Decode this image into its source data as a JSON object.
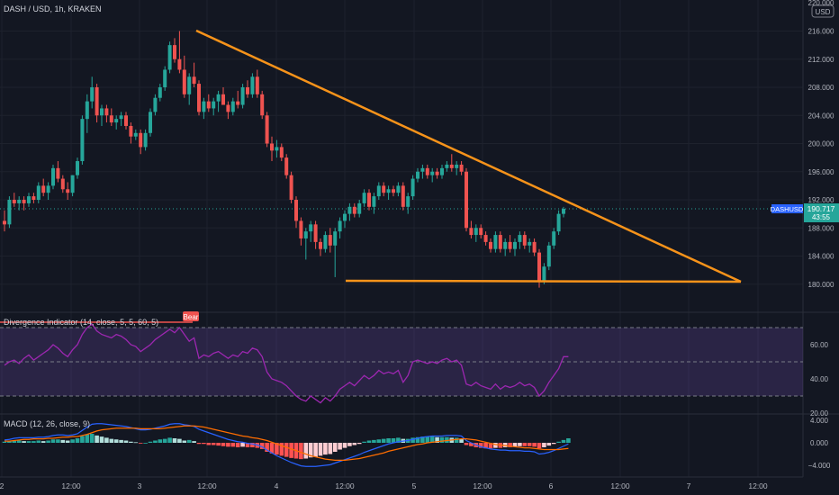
{
  "header": {
    "symbol_title": "DASH / USD, 1h, KRAKEN",
    "currency_badge": "USD"
  },
  "price_axis": {
    "top_partial": "220.000",
    "ticks": [
      "216.000",
      "212.000",
      "208.000",
      "204.000",
      "200.000",
      "196.000",
      "192.000",
      "188.000",
      "184.000",
      "180.000"
    ],
    "current_price": "190.717",
    "countdown": "43:55"
  },
  "rsi_panel": {
    "label": "Divergence Indicator (14, close, 5, 5, 60, 5)",
    "bear_label": "Bear",
    "ticks": [
      "60.00",
      "40.00",
      "20.00"
    ]
  },
  "macd_panel": {
    "label": "MACD (12, 26, close, 9)",
    "ticks": [
      "4.000",
      "0.000",
      "−4.000"
    ]
  },
  "time_axis": {
    "labels": [
      "2",
      "12:00",
      "3",
      "12:00",
      "4",
      "12:00",
      "5",
      "12:00",
      "6",
      "12:00",
      "7",
      "12:00"
    ]
  },
  "colors": {
    "background": "#131722",
    "up": "#26a69a",
    "down": "#ef5350",
    "trendline": "#f7931a",
    "rsi_line": "#9c27b0",
    "rsi_band": "#7e57c2",
    "macd_line": "#2962ff",
    "signal_line": "#ff6d00",
    "price_tag": "#2962ff"
  },
  "chart_data": [
    {
      "type": "candlestick",
      "title": "DASH / USD, 1h, KRAKEN",
      "ylim": [
        178,
        220
      ],
      "current_price": 190.717,
      "candles": [
        [
          189.0,
          190.5,
          187.5,
          188.5
        ],
        [
          188.5,
          192.5,
          188,
          192.0
        ],
        [
          192.0,
          193.0,
          191.0,
          191.5
        ],
        [
          191.5,
          192.5,
          190.5,
          192.0
        ],
        [
          192.0,
          192.5,
          190.5,
          191.5
        ],
        [
          191.5,
          193.0,
          191.0,
          192.5
        ],
        [
          192.5,
          193.0,
          191.5,
          192.0
        ],
        [
          192.0,
          194.5,
          191.5,
          194.0
        ],
        [
          194.0,
          195.0,
          192.5,
          193.0
        ],
        [
          193.0,
          194.5,
          192.0,
          194.0
        ],
        [
          194.0,
          197.0,
          193.5,
          196.5
        ],
        [
          196.5,
          197.5,
          194.5,
          195.0
        ],
        [
          195.0,
          195.5,
          193.0,
          193.5
        ],
        [
          193.5,
          194.5,
          192.0,
          193.0
        ],
        [
          193.0,
          195.5,
          192.5,
          195.5
        ],
        [
          195.5,
          198.0,
          195.0,
          197.5
        ],
        [
          197.5,
          204.0,
          197.0,
          203.5
        ],
        [
          203.5,
          207.0,
          201.5,
          206.0
        ],
        [
          206.0,
          209.5,
          205.0,
          208.0
        ],
        [
          208.0,
          208.5,
          203.0,
          204.0
        ],
        [
          204.0,
          205.5,
          202.5,
          205.0
        ],
        [
          205.0,
          205.5,
          203.0,
          204.0
        ],
        [
          204.0,
          205.0,
          202.5,
          203.0
        ],
        [
          203.0,
          204.0,
          202.0,
          203.5
        ],
        [
          203.5,
          204.5,
          202.5,
          204.0
        ],
        [
          204.0,
          204.5,
          202.0,
          202.5
        ],
        [
          202.5,
          203.0,
          200.0,
          201.0
        ],
        [
          201.0,
          202.0,
          200.5,
          201.5
        ],
        [
          201.5,
          202.0,
          198.5,
          199.5
        ],
        [
          199.5,
          202.0,
          199.0,
          201.5
        ],
        [
          201.5,
          205.0,
          201.0,
          204.5
        ],
        [
          204.5,
          207.0,
          204.0,
          206.5
        ],
        [
          206.5,
          208.5,
          206.0,
          208.0
        ],
        [
          208.0,
          211.0,
          207.5,
          210.5
        ],
        [
          210.5,
          214.5,
          210.0,
          214.0
        ],
        [
          214.0,
          215.0,
          211.5,
          212.0
        ],
        [
          212.0,
          216.0,
          210.0,
          210.5
        ],
        [
          210.5,
          212.5,
          206.5,
          207.0
        ],
        [
          207.0,
          210.0,
          205.5,
          209.5
        ],
        [
          209.5,
          211.5,
          208.0,
          208.5
        ],
        [
          208.5,
          209.0,
          204.0,
          204.5
        ],
        [
          204.5,
          206.5,
          203.5,
          206.0
        ],
        [
          206.0,
          207.0,
          204.5,
          205.0
        ],
        [
          205.0,
          206.5,
          204.0,
          206.0
        ],
        [
          206.0,
          207.5,
          204.5,
          207.0
        ],
        [
          207.0,
          208.0,
          205.5,
          205.5
        ],
        [
          205.5,
          206.0,
          203.5,
          204.5
        ],
        [
          204.5,
          206.5,
          204.0,
          206.0
        ],
        [
          206.0,
          207.5,
          205.0,
          205.5
        ],
        [
          205.5,
          208.5,
          205.0,
          208.0
        ],
        [
          208.0,
          209.0,
          206.5,
          207.0
        ],
        [
          207.0,
          210.0,
          206.5,
          209.5
        ],
        [
          209.5,
          210.5,
          206.5,
          207.0
        ],
        [
          207.0,
          207.5,
          203.5,
          204.0
        ],
        [
          204.0,
          204.5,
          199.5,
          200.0
        ],
        [
          200.0,
          201.0,
          197.5,
          199.0
        ],
        [
          199.0,
          200.5,
          198.0,
          199.5
        ],
        [
          199.5,
          200.0,
          197.5,
          198.0
        ],
        [
          198.0,
          198.5,
          195.0,
          195.5
        ],
        [
          195.5,
          196.0,
          191.5,
          192.0
        ],
        [
          192.0,
          192.5,
          188.0,
          189.0
        ],
        [
          189.0,
          189.5,
          185.5,
          186.5
        ],
        [
          186.5,
          188.0,
          183.5,
          187.5
        ],
        [
          187.5,
          189.0,
          186.0,
          188.5
        ],
        [
          188.5,
          189.0,
          185.0,
          186.0
        ],
        [
          186.0,
          186.5,
          184.0,
          185.0
        ],
        [
          185.0,
          187.5,
          184.5,
          187.0
        ],
        [
          187.0,
          188.0,
          184.5,
          185.5
        ],
        [
          185.5,
          188.0,
          181.0,
          187.5
        ],
        [
          187.5,
          189.5,
          186.5,
          189.0
        ],
        [
          189.0,
          190.5,
          188.0,
          190.0
        ],
        [
          190.0,
          191.5,
          189.0,
          191.0
        ],
        [
          191.0,
          191.5,
          189.5,
          190.0
        ],
        [
          190.0,
          192.0,
          189.5,
          191.5
        ],
        [
          191.5,
          193.5,
          191.0,
          193.0
        ],
        [
          193.0,
          193.5,
          190.5,
          191.0
        ],
        [
          191.0,
          193.0,
          190.0,
          192.5
        ],
        [
          192.5,
          194.5,
          192.0,
          194.0
        ],
        [
          194.0,
          194.5,
          192.5,
          193.0
        ],
        [
          193.0,
          194.0,
          192.0,
          193.5
        ],
        [
          193.5,
          194.0,
          192.5,
          193.0
        ],
        [
          193.0,
          194.5,
          192.5,
          194.0
        ],
        [
          194.0,
          194.5,
          190.5,
          191.0
        ],
        [
          191.0,
          193.0,
          190.0,
          192.5
        ],
        [
          192.5,
          195.5,
          192.0,
          195.0
        ],
        [
          195.0,
          196.5,
          194.5,
          196.0
        ],
        [
          196.0,
          197.0,
          195.0,
          196.5
        ],
        [
          196.5,
          197.0,
          195.0,
          195.5
        ],
        [
          195.5,
          196.5,
          194.5,
          196.0
        ],
        [
          196.0,
          196.5,
          195.0,
          195.5
        ],
        [
          195.5,
          197.0,
          195.0,
          196.5
        ],
        [
          196.5,
          197.5,
          196.0,
          197.0
        ],
        [
          197.0,
          198.5,
          196.0,
          196.5
        ],
        [
          196.5,
          197.5,
          195.5,
          197.0
        ],
        [
          197.0,
          197.5,
          195.5,
          196.0
        ],
        [
          196.0,
          196.5,
          187.5,
          188.0
        ],
        [
          188.0,
          189.0,
          186.5,
          187.0
        ],
        [
          187.0,
          188.5,
          186.0,
          188.0
        ],
        [
          188.0,
          188.5,
          186.5,
          187.0
        ],
        [
          187.0,
          187.5,
          185.5,
          186.0
        ],
        [
          186.0,
          186.5,
          184.5,
          185.0
        ],
        [
          185.0,
          187.5,
          184.5,
          187.0
        ],
        [
          187.0,
          187.5,
          184.5,
          185.0
        ],
        [
          185.0,
          186.5,
          184.0,
          186.0
        ],
        [
          186.0,
          187.0,
          184.5,
          185.0
        ],
        [
          185.0,
          186.5,
          184.0,
          186.0
        ],
        [
          186.0,
          187.5,
          185.0,
          187.0
        ],
        [
          187.0,
          187.5,
          185.0,
          185.5
        ],
        [
          185.5,
          186.5,
          184.5,
          186.0
        ],
        [
          186.0,
          186.5,
          184.0,
          184.5
        ],
        [
          184.5,
          185.0,
          179.5,
          180.5
        ],
        [
          180.5,
          183.0,
          180.0,
          182.5
        ],
        [
          182.5,
          186.0,
          182.0,
          185.5
        ],
        [
          185.5,
          188.0,
          185.0,
          187.5
        ],
        [
          187.5,
          190.5,
          187.0,
          190.0
        ],
        [
          190.0,
          191.0,
          189.5,
          190.717
        ]
      ]
    },
    {
      "type": "line",
      "title": "Divergence Indicator (14, close, 5, 5, 60, 5)",
      "ylim": [
        20,
        70
      ],
      "bands": [
        30,
        50,
        70
      ],
      "values": [
        48,
        50,
        51,
        49,
        52,
        54,
        51,
        53,
        55,
        57,
        60,
        58,
        55,
        53,
        57,
        60,
        66,
        70,
        72,
        68,
        66,
        65,
        64,
        66,
        65,
        63,
        60,
        59,
        56,
        58,
        60,
        63,
        65,
        67,
        69,
        67,
        70,
        66,
        62,
        64,
        52,
        54,
        53,
        55,
        56,
        54,
        52,
        54,
        53,
        56,
        55,
        58,
        57,
        53,
        44,
        40,
        39,
        38,
        36,
        33,
        30,
        28,
        27,
        30,
        28,
        26,
        29,
        27,
        30,
        34,
        36,
        38,
        36,
        39,
        42,
        40,
        42,
        45,
        43,
        44,
        43,
        45,
        38,
        42,
        50,
        51,
        50,
        49,
        50,
        49,
        51,
        52,
        50,
        51,
        48,
        37,
        36,
        38,
        36,
        35,
        34,
        37,
        34,
        36,
        35,
        36,
        38,
        36,
        37,
        35,
        30,
        33,
        38,
        42,
        46,
        53,
        53
      ]
    },
    {
      "type": "bar+line",
      "title": "MACD (12, 26, close, 9)",
      "ylim": [
        -5,
        5
      ],
      "histogram": [
        0.2,
        0.3,
        0.4,
        0.4,
        0.3,
        0.3,
        0.3,
        0.4,
        0.3,
        0.4,
        0.6,
        0.6,
        0.5,
        0.4,
        0.6,
        0.8,
        1.2,
        1.5,
        1.6,
        1.3,
        1.1,
        0.9,
        0.7,
        0.6,
        0.5,
        0.4,
        0.2,
        0.1,
        -0.1,
        0.0,
        0.2,
        0.4,
        0.6,
        0.7,
        0.9,
        0.8,
        0.7,
        0.4,
        0.5,
        0.3,
        -0.2,
        -0.2,
        -0.4,
        -0.4,
        -0.5,
        -0.6,
        -0.7,
        -0.7,
        -0.8,
        -0.7,
        -0.8,
        -0.8,
        -0.9,
        -1.1,
        -1.6,
        -1.9,
        -2.1,
        -2.3,
        -2.5,
        -2.7,
        -2.8,
        -2.9,
        -2.8,
        -2.6,
        -2.5,
        -2.3,
        -2.1,
        -2.0,
        -1.6,
        -1.2,
        -0.9,
        -0.6,
        -0.4,
        -0.2,
        0.2,
        0.4,
        0.5,
        0.6,
        0.7,
        0.8,
        0.8,
        0.9,
        0.7,
        0.7,
        0.9,
        1.0,
        1.1,
        1.1,
        1.1,
        1.0,
        1.0,
        1.0,
        0.9,
        0.9,
        0.7,
        -0.4,
        -0.6,
        -0.8,
        -0.9,
        -1.0,
        -1.0,
        -0.9,
        -0.9,
        -0.8,
        -0.8,
        -0.7,
        -0.6,
        -0.6,
        -0.6,
        -0.7,
        -1.0,
        -0.8,
        -0.5,
        -0.2,
        0.2,
        0.5,
        0.8
      ],
      "macd": [
        0.5,
        0.6,
        0.8,
        0.9,
        0.9,
        0.9,
        0.9,
        1.0,
        1.0,
        1.1,
        1.3,
        1.4,
        1.4,
        1.3,
        1.4,
        1.6,
        2.2,
        2.8,
        3.3,
        3.4,
        3.4,
        3.3,
        3.2,
        3.1,
        3.0,
        2.9,
        2.7,
        2.5,
        2.3,
        2.3,
        2.4,
        2.6,
        2.8,
        3.0,
        3.3,
        3.4,
        3.4,
        3.2,
        3.1,
        2.9,
        2.4,
        2.1,
        1.8,
        1.5,
        1.2,
        0.9,
        0.6,
        0.4,
        0.2,
        0.1,
        -0.1,
        -0.2,
        -0.4,
        -0.7,
        -1.3,
        -1.8,
        -2.3,
        -2.7,
        -3.1,
        -3.5,
        -3.8,
        -4.1,
        -4.2,
        -4.2,
        -4.2,
        -4.1,
        -4.0,
        -3.9,
        -3.6,
        -3.3,
        -3.0,
        -2.7,
        -2.4,
        -2.1,
        -1.7,
        -1.4,
        -1.1,
        -0.8,
        -0.5,
        -0.2,
        0.0,
        0.2,
        0.3,
        0.4,
        0.6,
        0.8,
        1.0,
        1.1,
        1.2,
        1.2,
        1.2,
        1.3,
        1.3,
        1.3,
        1.2,
        0.4,
        0.0,
        -0.4,
        -0.7,
        -0.9,
        -1.1,
        -1.2,
        -1.3,
        -1.3,
        -1.4,
        -1.4,
        -1.4,
        -1.5,
        -1.5,
        -1.6,
        -2.0,
        -1.9,
        -1.7,
        -1.4,
        -1.0,
        -0.6,
        -0.2
      ],
      "signal": [
        0.3,
        0.3,
        0.4,
        0.5,
        0.6,
        0.6,
        0.7,
        0.7,
        0.7,
        0.8,
        0.8,
        0.9,
        1.0,
        1.0,
        1.1,
        1.1,
        1.3,
        1.5,
        1.8,
        2.1,
        2.3,
        2.4,
        2.5,
        2.6,
        2.6,
        2.6,
        2.6,
        2.6,
        2.5,
        2.5,
        2.5,
        2.5,
        2.5,
        2.6,
        2.7,
        2.8,
        2.9,
        3.0,
        3.0,
        3.0,
        2.9,
        2.8,
        2.6,
        2.4,
        2.2,
        2.0,
        1.8,
        1.6,
        1.4,
        1.2,
        1.1,
        0.9,
        0.8,
        0.6,
        0.4,
        0.1,
        -0.2,
        -0.5,
        -0.8,
        -1.1,
        -1.4,
        -1.7,
        -2.0,
        -2.3,
        -2.5,
        -2.7,
        -2.9,
        -3.0,
        -3.1,
        -3.1,
        -3.1,
        -3.0,
        -2.9,
        -2.8,
        -2.6,
        -2.4,
        -2.2,
        -2.0,
        -1.8,
        -1.5,
        -1.3,
        -1.1,
        -0.9,
        -0.7,
        -0.5,
        -0.3,
        -0.2,
        0.0,
        0.1,
        0.2,
        0.3,
        0.4,
        0.5,
        0.6,
        0.7,
        0.7,
        0.6,
        0.5,
        0.3,
        0.1,
        -0.1,
        -0.3,
        -0.4,
        -0.5,
        -0.6,
        -0.7,
        -0.8,
        -0.9,
        -0.9,
        -1.0,
        -1.1,
        -1.2,
        -1.2,
        -1.2,
        -1.2,
        -1.1,
        -1.0
      ]
    }
  ]
}
